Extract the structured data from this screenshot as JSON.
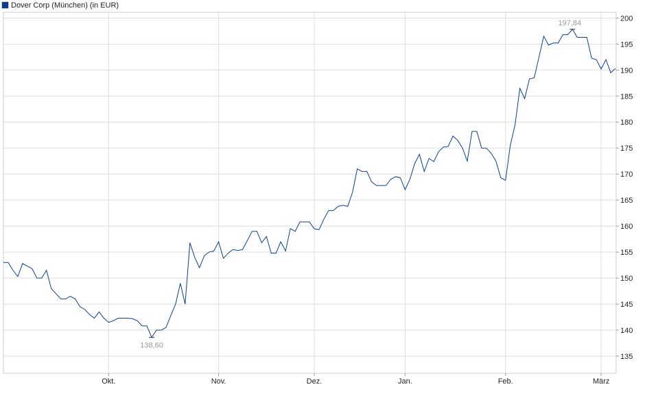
{
  "chart_data": {
    "type": "line",
    "series": [
      {
        "name": "Dover Corp (München) (in EUR)",
        "color": "#0a3d91",
        "values": [
          153,
          153,
          151.5,
          150.3,
          152.8,
          152.3,
          151.8,
          150,
          150,
          151.5,
          148,
          147,
          146,
          146,
          146.5,
          146,
          144.5,
          144,
          143,
          142.3,
          143.5,
          142.3,
          141.5,
          141.8,
          142.3,
          142.3,
          142.3,
          142.2,
          141.8,
          140.8,
          140.8,
          138.6,
          140,
          140,
          140.5,
          142.8,
          145,
          149,
          145,
          156.8,
          154,
          152,
          154.3,
          155,
          155.2,
          157,
          153.8,
          154.8,
          155.5,
          155.3,
          155.5,
          157.2,
          159,
          159,
          156.8,
          158,
          154.8,
          154.8,
          157,
          155.2,
          159.5,
          159,
          160.8,
          160.8,
          160.8,
          159.5,
          159.3,
          161.3,
          163,
          163,
          163.8,
          164,
          163.8,
          166.5,
          171,
          170.5,
          170.5,
          168.5,
          167.8,
          167.8,
          167.8,
          169,
          169.5,
          169.3,
          167,
          169,
          172,
          173.8,
          170.5,
          173,
          172.4,
          174.3,
          175.2,
          175.3,
          177.3,
          176.5,
          175,
          172.5,
          178.2,
          178.2,
          175,
          175,
          174,
          172.5,
          169.3,
          168.8,
          175.5,
          179.5,
          186.5,
          184.5,
          188.3,
          188.5,
          192.5,
          196.5,
          194.8,
          195.2,
          195.2,
          196.8,
          196.8,
          197.84,
          196.3,
          196.3,
          196.3,
          192.3,
          192,
          190.2,
          192,
          189.5,
          190.3
        ]
      }
    ],
    "min_label": "138,60",
    "max_label": "197,84",
    "xlim": [
      0,
      128
    ],
    "xticks": [
      {
        "value": 22,
        "label": "Okt."
      },
      {
        "value": 45,
        "label": "Nov."
      },
      {
        "value": 65,
        "label": "Dez."
      },
      {
        "value": 84,
        "label": "Jan."
      },
      {
        "value": 105,
        "label": "Feb."
      },
      {
        "value": 125,
        "label": "März"
      }
    ],
    "ylim": [
      131.7,
      201.1
    ],
    "yticks": [
      135,
      140,
      145,
      150,
      155,
      160,
      165,
      170,
      175,
      180,
      185,
      190,
      195,
      200
    ],
    "grid": true
  }
}
